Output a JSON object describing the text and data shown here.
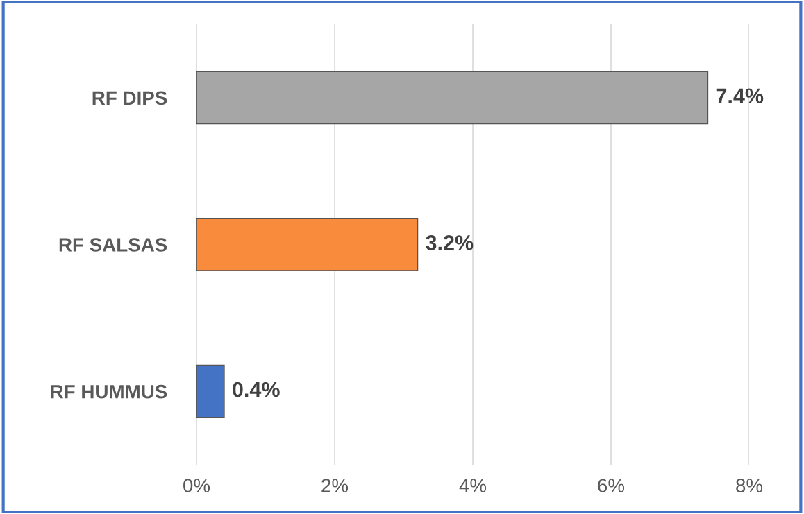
{
  "chart_data": {
    "type": "bar",
    "orientation": "horizontal",
    "categories": [
      "RF DIPS",
      "RF SALSAS",
      "RF HUMMUS"
    ],
    "values": [
      7.4,
      3.2,
      0.4
    ],
    "colors": [
      "#a6a6a6",
      "#f98b3c",
      "#4472c4"
    ],
    "value_labels": [
      "7.4%",
      "3.2%",
      "0.4%"
    ],
    "xlim": [
      0,
      8
    ],
    "xticks": [
      {
        "value": 0,
        "label": "0%"
      },
      {
        "value": 2,
        "label": "2%"
      },
      {
        "value": 4,
        "label": "4%"
      },
      {
        "value": 6,
        "label": "6%"
      },
      {
        "value": 8,
        "label": "8%"
      }
    ],
    "grid": "x",
    "legend": false
  }
}
